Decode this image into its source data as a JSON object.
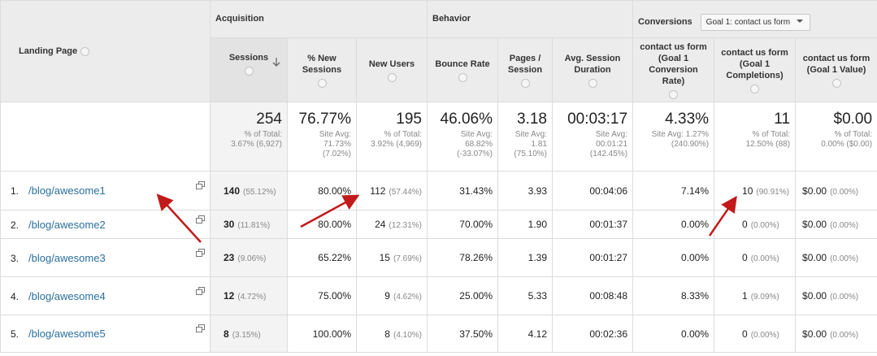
{
  "header": {
    "landing_page": "Landing Page",
    "groups": [
      "Acquisition",
      "Behavior",
      "Conversions"
    ],
    "goal_select": "Goal 1: contact us form",
    "columns": [
      "Sessions",
      "% New Sessions",
      "New Users",
      "Bounce Rate",
      "Pages / Session",
      "Avg. Session Duration",
      "contact us form (Goal 1 Conversion Rate)",
      "contact us form (Goal 1 Completions)",
      "contact us form (Goal 1 Value)"
    ]
  },
  "totals": [
    {
      "value": "254",
      "notes": [
        "% of Total:",
        "3.67% (6,927)"
      ]
    },
    {
      "value": "76.77%",
      "notes": [
        "Site Avg:",
        "71.73%",
        "(7.02%)"
      ]
    },
    {
      "value": "195",
      "notes": [
        "% of Total:",
        "3.92% (4,969)"
      ]
    },
    {
      "value": "46.06%",
      "notes": [
        "Site Avg:",
        "68.82%",
        "(-33.07%)"
      ]
    },
    {
      "value": "3.18",
      "notes": [
        "Site Avg:",
        "1.81",
        "(75.10%)"
      ]
    },
    {
      "value": "00:03:17",
      "notes": [
        "Site Avg:",
        "00:01:21",
        "(142.45%)"
      ]
    },
    {
      "value": "4.33%",
      "notes": [
        "Site Avg: 1.27%",
        "(240.90%)"
      ]
    },
    {
      "value": "11",
      "notes": [
        "% of Total:",
        "12.50% (88)"
      ]
    },
    {
      "value": "$0.00",
      "notes": [
        "% of Total:",
        "0.00% ($0.00)"
      ]
    }
  ],
  "rows": [
    {
      "index": "1.",
      "page": "/blog/awesome1",
      "cells": [
        {
          "value": "140",
          "share": "(55.12%)"
        },
        {
          "value": "80.00%"
        },
        {
          "value": "112",
          "share": "(57.44%)"
        },
        {
          "value": "31.43%"
        },
        {
          "value": "3.93"
        },
        {
          "value": "00:04:06"
        },
        {
          "value": "7.14%"
        },
        {
          "value": "10",
          "share": "(90.91%)"
        },
        {
          "value": "$0.00",
          "share": "(0.00%)"
        }
      ]
    },
    {
      "index": "2.",
      "page": "/blog/awesome2",
      "cells": [
        {
          "value": "30",
          "share": "(11.81%)"
        },
        {
          "value": "80.00%"
        },
        {
          "value": "24",
          "share": "(12.31%)"
        },
        {
          "value": "70.00%"
        },
        {
          "value": "1.90"
        },
        {
          "value": "00:01:37"
        },
        {
          "value": "0.00%"
        },
        {
          "value": "0",
          "share": "(0.00%)"
        },
        {
          "value": "$0.00",
          "share": "(0.00%)"
        }
      ]
    },
    {
      "index": "3.",
      "page": "/blog/awesome3",
      "cells": [
        {
          "value": "23",
          "share": "(9.06%)"
        },
        {
          "value": "65.22%"
        },
        {
          "value": "15",
          "share": "(7.69%)"
        },
        {
          "value": "78.26%"
        },
        {
          "value": "1.39"
        },
        {
          "value": "00:01:27"
        },
        {
          "value": "0.00%"
        },
        {
          "value": "0",
          "share": "(0.00%)"
        },
        {
          "value": "$0.00",
          "share": "(0.00%)"
        }
      ]
    },
    {
      "index": "4.",
      "page": "/blog/awesome4",
      "cells": [
        {
          "value": "12",
          "share": "(4.72%)"
        },
        {
          "value": "75.00%"
        },
        {
          "value": "9",
          "share": "(4.62%)"
        },
        {
          "value": "25.00%"
        },
        {
          "value": "5.33"
        },
        {
          "value": "00:08:48"
        },
        {
          "value": "8.33%"
        },
        {
          "value": "1",
          "share": "(9.09%)"
        },
        {
          "value": "$0.00",
          "share": "(0.00%)"
        }
      ]
    },
    {
      "index": "5.",
      "page": "/blog/awesome5",
      "cells": [
        {
          "value": "8",
          "share": "(3.15%)"
        },
        {
          "value": "100.00%"
        },
        {
          "value": "8",
          "share": "(4.10%)"
        },
        {
          "value": "37.50%"
        },
        {
          "value": "4.12"
        },
        {
          "value": "00:02:36"
        },
        {
          "value": "0.00%"
        },
        {
          "value": "0",
          "share": "(0.00%)"
        },
        {
          "value": "$0.00",
          "share": "(0.00%)"
        }
      ]
    }
  ]
}
